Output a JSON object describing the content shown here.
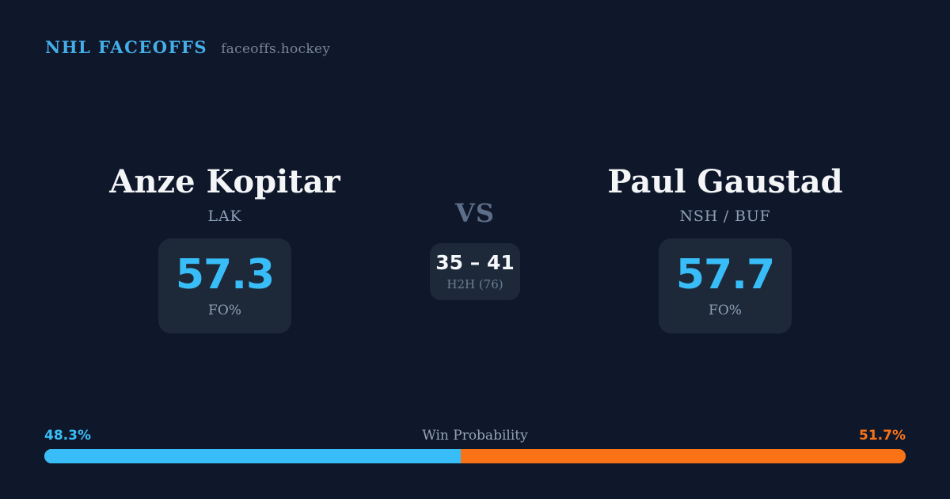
{
  "header": {
    "brand": "NHL FACEOFFS",
    "domain": "faceoffs.hockey"
  },
  "players": {
    "left": {
      "name": "Anze Kopitar",
      "team": "LAK",
      "fo_pct": "57.3",
      "stat_label": "FO%"
    },
    "right": {
      "name": "Paul Gaustad",
      "team": "NSH / BUF",
      "fo_pct": "57.7",
      "stat_label": "FO%"
    }
  },
  "versus": {
    "label": "VS",
    "h2h_score": "35 – 41",
    "h2h_label": "H2H (76)"
  },
  "win_probability": {
    "title": "Win Probability",
    "left_pct_label": "48.3%",
    "right_pct_label": "51.7%",
    "left_value": 48.3,
    "right_value": 51.7
  },
  "colors": {
    "background": "#0f172a",
    "card": "#1d2939",
    "accent_blue": "#38bdf8",
    "accent_orange": "#f97316",
    "brand_blue": "#45aee8",
    "text_primary": "#f3f5f7",
    "text_muted": "#8da0b8"
  }
}
